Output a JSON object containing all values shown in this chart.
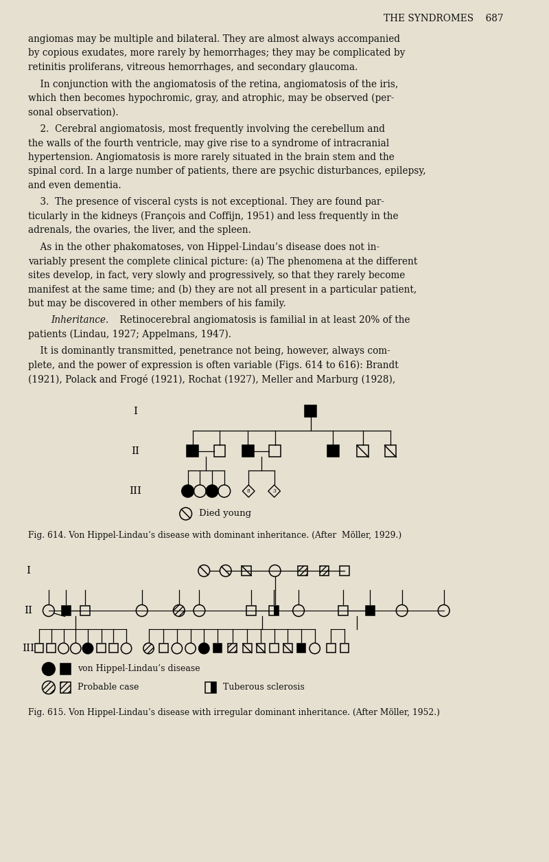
{
  "bg_color": "#e5e0d0",
  "text_color": "#111111",
  "page_width": 8.0,
  "page_height": 12.55,
  "header_text": "THE SYNDROMES    687",
  "fig614_caption": "Fig. 614. Von Hippel-Lindau’s disease with dominant inheritance. (After  Möller, 1929.)",
  "fig615_caption": "Fig. 615. Von Hippel-Lindau’s disease with irregular dominant inheritance. (After Möller, 1952.)"
}
